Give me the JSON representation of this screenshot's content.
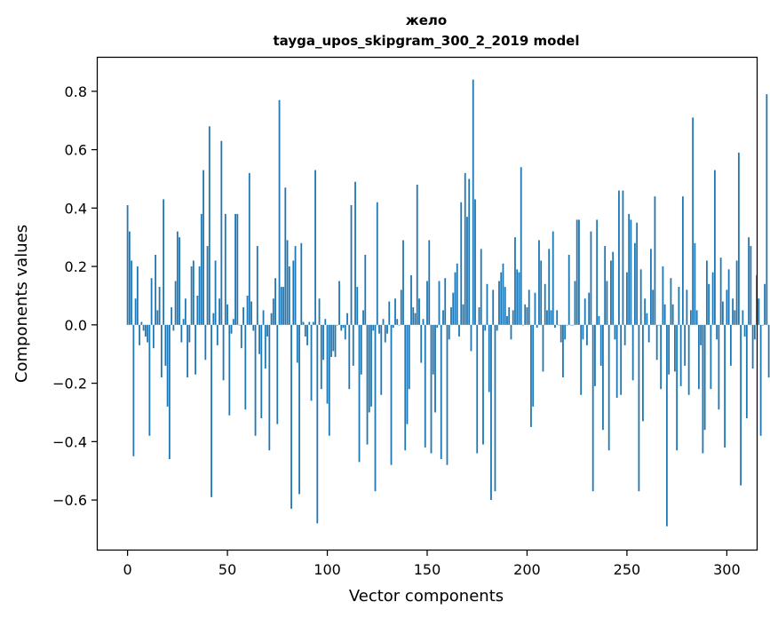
{
  "chart_data": {
    "type": "bar",
    "title": "желo",
    "subtitle": "tayga_upos_skipgram_300_2_2019 model",
    "xlabel": "Vector components",
    "ylabel": "Components values",
    "xlim": [
      -14.95,
      314.95
    ],
    "ylim": [
      -0.77,
      0.915
    ],
    "xticks": [
      0,
      50,
      100,
      150,
      200,
      250,
      300
    ],
    "xtick_labels": [
      "0",
      "50",
      "100",
      "150",
      "200",
      "250",
      "300"
    ],
    "yticks": [
      -0.6,
      -0.4,
      -0.2,
      0.0,
      0.2,
      0.4,
      0.6,
      0.8
    ],
    "ytick_labels": [
      "−0.6",
      "−0.4",
      "−0.2",
      "0.0",
      "0.2",
      "0.4",
      "0.6",
      "0.8"
    ],
    "bar_color": "#1f77b4",
    "grid": false,
    "legend": "none",
    "x_start": 0,
    "values": [
      0.41,
      0.32,
      0.22,
      -0.45,
      0.09,
      0.2,
      -0.07,
      0.01,
      -0.02,
      -0.04,
      -0.06,
      -0.38,
      0.16,
      -0.08,
      0.24,
      0.05,
      0.13,
      -0.18,
      0.43,
      -0.14,
      -0.28,
      -0.46,
      0.06,
      -0.02,
      0.15,
      0.32,
      0.3,
      -0.06,
      0.02,
      0.09,
      -0.18,
      -0.06,
      0.2,
      0.22,
      -0.17,
      0.1,
      0.2,
      0.38,
      0.53,
      -0.12,
      0.27,
      0.68,
      -0.59,
      0.04,
      0.22,
      -0.07,
      0.09,
      0.63,
      -0.19,
      0.38,
      0.07,
      -0.31,
      -0.03,
      0.02,
      0.38,
      0.38,
      0.0,
      -0.08,
      0.06,
      -0.29,
      0.1,
      0.52,
      0.08,
      -0.02,
      -0.38,
      0.27,
      -0.1,
      -0.32,
      0.05,
      -0.15,
      -0.04,
      -0.43,
      0.04,
      0.09,
      0.16,
      -0.34,
      0.77,
      0.13,
      0.13,
      0.47,
      0.29,
      0.2,
      -0.63,
      0.22,
      0.27,
      -0.13,
      -0.58,
      0.28,
      0.01,
      -0.04,
      -0.07,
      0.01,
      -0.26,
      0.01,
      0.53,
      -0.68,
      0.09,
      -0.22,
      -0.12,
      0.02,
      -0.27,
      -0.38,
      -0.11,
      -0.09,
      -0.11,
      0.0,
      0.15,
      -0.02,
      -0.01,
      -0.05,
      0.04,
      -0.22,
      0.41,
      -0.14,
      0.49,
      0.13,
      -0.47,
      -0.17,
      0.05,
      0.24,
      -0.41,
      -0.3,
      -0.28,
      -0.02,
      -0.57,
      0.42,
      -0.03,
      -0.24,
      0.02,
      -0.06,
      -0.03,
      0.08,
      -0.48,
      -0.01,
      0.09,
      0.02,
      0.0,
      0.12,
      0.29,
      -0.43,
      -0.34,
      -0.22,
      0.17,
      0.06,
      0.04,
      0.48,
      0.09,
      -0.13,
      0.02,
      -0.42,
      0.15,
      0.29,
      -0.44,
      -0.17,
      -0.3,
      -0.01,
      0.15,
      -0.46,
      0.05,
      0.16,
      -0.48,
      -0.05,
      0.06,
      0.11,
      0.18,
      0.21,
      -0.04,
      0.42,
      0.07,
      0.52,
      0.37,
      0.5,
      -0.09,
      0.84,
      0.43,
      -0.44,
      0.06,
      0.26,
      -0.41,
      -0.02,
      0.14,
      -0.23,
      -0.6,
      0.12,
      -0.57,
      -0.02,
      0.15,
      0.18,
      0.21,
      0.13,
      0.03,
      0.06,
      -0.05,
      0.05,
      0.3,
      0.19,
      0.18,
      0.54,
      0.0,
      0.07,
      0.06,
      0.12,
      -0.35,
      -0.28,
      0.11,
      -0.01,
      0.29,
      0.22,
      -0.16,
      0.14,
      0.05,
      0.26,
      0.05,
      0.32,
      -0.01,
      0.05,
      0.0,
      -0.06,
      -0.18,
      -0.05,
      0.0,
      0.24,
      0.0,
      0.0,
      0.15,
      0.36,
      0.36,
      -0.24,
      -0.05,
      0.09,
      -0.07,
      0.11,
      0.32,
      -0.57,
      -0.21,
      0.36,
      0.03,
      -0.14,
      -0.36,
      0.27,
      0.15,
      -0.43,
      0.22,
      0.25,
      -0.05,
      -0.25,
      0.46,
      -0.24,
      0.46,
      -0.07,
      0.18,
      0.38,
      0.36,
      -0.19,
      0.28,
      0.35,
      -0.57,
      0.19,
      -0.33,
      0.09,
      0.04,
      -0.06,
      0.26,
      0.12,
      0.44,
      -0.12,
      0.0,
      -0.22,
      0.2,
      0.07,
      -0.69,
      -0.17,
      0.16,
      0.07,
      -0.16,
      -0.43,
      0.13,
      -0.21,
      0.44,
      -0.14,
      0.12,
      -0.24,
      0.05,
      0.71,
      0.28,
      0.05,
      -0.22,
      -0.07,
      -0.44,
      -0.36,
      0.22,
      0.14,
      -0.22,
      0.18,
      0.53,
      -0.05,
      -0.29,
      0.23,
      0.08,
      -0.42,
      0.12,
      0.19,
      -0.14,
      0.09,
      0.05,
      0.22,
      0.59,
      -0.55,
      0.05,
      -0.04,
      -0.32,
      0.3,
      0.27,
      -0.15,
      -0.05,
      0.17,
      0.09,
      -0.38,
      0.0,
      0.14,
      0.79,
      -0.18
    ]
  }
}
